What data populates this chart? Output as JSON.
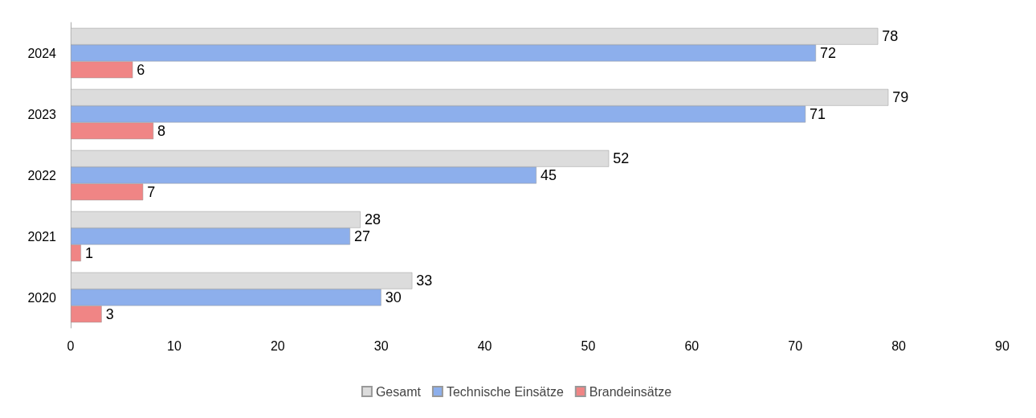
{
  "chart_data": {
    "type": "bar",
    "orientation": "horizontal",
    "categories": [
      "2024",
      "2023",
      "2022",
      "2021",
      "2020"
    ],
    "series": [
      {
        "name": "Gesamt",
        "color": "#dcdcdc",
        "values": [
          78,
          79,
          52,
          28,
          33
        ]
      },
      {
        "name": "Technische Einsätze",
        "color": "#8dafec",
        "values": [
          72,
          71,
          45,
          27,
          30
        ]
      },
      {
        "name": "Brandeinsätze",
        "color": "#f08585",
        "values": [
          6,
          8,
          7,
          1,
          3
        ]
      }
    ],
    "xlim": [
      0,
      90
    ],
    "xticks": [
      0,
      10,
      20,
      30,
      40,
      50,
      60,
      70,
      80,
      90
    ],
    "grid": false,
    "legend": "bottom",
    "data_labels": true
  }
}
